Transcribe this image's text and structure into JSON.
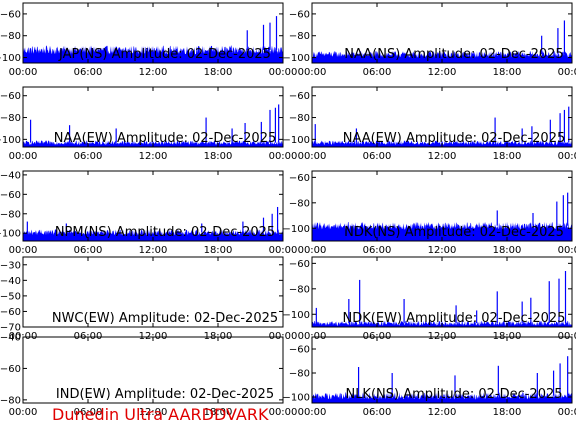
{
  "footer": "Dunedin Ultra AARDDVARK",
  "colors": {
    "trace": "#0000ff",
    "frame": "#000000",
    "footer": "#e00000"
  },
  "chart_data": [
    {
      "type": "area",
      "title": "JAP(NS) Amplitude: 02-Dec-2025",
      "x_ticks": [
        "00:00",
        "06:00",
        "12:00",
        "18:00",
        "00:00"
      ],
      "xlim": [
        0,
        24
      ],
      "ylim": [
        -105,
        -50
      ],
      "y_ticks": [
        -60,
        -80,
        -100
      ],
      "series": [
        {
          "baseline": -93,
          "noise": 4,
          "spikes": [
            [
              20.7,
              -75
            ],
            [
              22.2,
              -70
            ],
            [
              22.8,
              -68
            ],
            [
              23.4,
              -62
            ]
          ]
        }
      ]
    },
    {
      "type": "area",
      "title": "NAA(NS) Amplitude: 02-Dec-2025",
      "x_ticks": [
        "00:00",
        "06:00",
        "12:00",
        "18:00",
        "00:00"
      ],
      "xlim": [
        0,
        24
      ],
      "ylim": [
        -105,
        -50
      ],
      "y_ticks": [
        -60,
        -80,
        -100
      ],
      "series": [
        {
          "baseline": -97,
          "noise": 3,
          "spikes": [
            [
              21.2,
              -80
            ],
            [
              22.7,
              -73
            ],
            [
              23.3,
              -66
            ]
          ]
        }
      ]
    },
    {
      "type": "area",
      "title": "NAA(EW) Amplitude: 02-Dec-2025",
      "x_ticks": [
        "00:00",
        "06:00",
        "12:00",
        "18:00",
        "00:00"
      ],
      "xlim": [
        0,
        24
      ],
      "ylim": [
        -107,
        -52
      ],
      "y_ticks": [
        -60,
        -80,
        -100
      ],
      "series": [
        {
          "baseline": -103,
          "noise": 2,
          "spikes": [
            [
              0.7,
              -82
            ],
            [
              4.3,
              -87
            ],
            [
              8.6,
              -90
            ],
            [
              16.9,
              -80
            ],
            [
              19.3,
              -90
            ],
            [
              20.5,
              -85
            ],
            [
              22.0,
              -84
            ],
            [
              22.8,
              -73
            ],
            [
              23.3,
              -71
            ],
            [
              23.6,
              -68
            ]
          ]
        }
      ]
    },
    {
      "type": "area",
      "title": "NAA(EW) Amplitude: 02-Dec-2025",
      "x_ticks": [
        "00:00",
        "06:00",
        "12:00",
        "18:00",
        "00:00"
      ],
      "xlim": [
        0,
        24
      ],
      "ylim": [
        -107,
        -52
      ],
      "y_ticks": [
        -60,
        -80,
        -100
      ],
      "series": [
        {
          "baseline": -103,
          "noise": 2,
          "spikes": [
            [
              0.3,
              -86
            ],
            [
              4.1,
              -90
            ],
            [
              16.9,
              -80
            ],
            [
              19.4,
              -90
            ],
            [
              20.3,
              -88
            ],
            [
              22.0,
              -82
            ],
            [
              22.9,
              -76
            ],
            [
              23.3,
              -73
            ],
            [
              23.7,
              -70
            ]
          ]
        }
      ]
    },
    {
      "type": "area",
      "title": "NPM(NS) Amplitude: 02-Dec-2025",
      "x_ticks": [
        "00:00",
        "06:00",
        "12:00",
        "18:00",
        "00:00"
      ],
      "xlim": [
        0,
        24
      ],
      "ylim": [
        -108,
        -36
      ],
      "y_ticks": [
        -40,
        -60,
        -80,
        -100
      ],
      "series": [
        {
          "baseline": -99,
          "noise": 3,
          "spikes": [
            [
              0.4,
              -88
            ],
            [
              4.0,
              -90
            ],
            [
              16.5,
              -90
            ],
            [
              20.3,
              -88
            ],
            [
              22.2,
              -84
            ],
            [
              23.0,
              -80
            ],
            [
              23.5,
              -73
            ]
          ]
        }
      ]
    },
    {
      "type": "area",
      "title": "NDK(NS) Amplitude: 02-Dec-2025",
      "x_ticks": [
        "00:00",
        "06:00",
        "12:00",
        "18:00",
        "00:00"
      ],
      "xlim": [
        0,
        24
      ],
      "ylim": [
        -110,
        -55
      ],
      "y_ticks": [
        -60,
        -80,
        -100
      ],
      "series": [
        {
          "baseline": -98,
          "noise": 3,
          "spikes": [
            [
              17.1,
              -86
            ],
            [
              20.4,
              -88
            ],
            [
              22.6,
              -79
            ],
            [
              23.2,
              -74
            ],
            [
              23.6,
              -72
            ]
          ]
        }
      ]
    },
    {
      "type": "area",
      "title": "NWC(EW) Amplitude: 02-Dec-2025",
      "x_ticks": [
        "00:00",
        "06:00",
        "12:00",
        "18:00",
        "00:00"
      ],
      "xlim": [
        0,
        24
      ],
      "ylim": [
        -70,
        -25
      ],
      "y_ticks": [
        -30,
        -40,
        -50,
        -60,
        -70
      ],
      "series": []
    },
    {
      "type": "area",
      "title": "NDK(EW) Amplitude: 02-Dec-2025",
      "x_ticks": [
        "00:00",
        "06:00",
        "12:00",
        "18:00",
        "00:00"
      ],
      "xlim": [
        0,
        24
      ],
      "ylim": [
        -110,
        -55
      ],
      "y_ticks": [
        -60,
        -80,
        -100
      ],
      "series": [
        {
          "baseline": -107,
          "noise": 2,
          "spikes": [
            [
              0.4,
              -95
            ],
            [
              3.4,
              -88
            ],
            [
              4.4,
              -73
            ],
            [
              8.5,
              -88
            ],
            [
              13.3,
              -93
            ],
            [
              15.2,
              -97
            ],
            [
              17.1,
              -82
            ],
            [
              19.4,
              -90
            ],
            [
              20.2,
              -87
            ],
            [
              21.9,
              -74
            ],
            [
              22.8,
              -72
            ],
            [
              23.4,
              -66
            ]
          ]
        }
      ]
    },
    {
      "type": "area",
      "title": "IND(EW) Amplitude: 02-Dec-2025",
      "x_ticks": [
        "00:00",
        "06:00",
        "12:00",
        "18:00",
        "00:00"
      ],
      "xlim": [
        0,
        24
      ],
      "ylim": [
        -82,
        -40
      ],
      "y_ticks": [
        -40,
        -60,
        -80
      ],
      "series": []
    },
    {
      "type": "area",
      "title": "NLK(NS) Amplitude: 02-Dec-2025",
      "x_ticks": [
        "00:00",
        "06:00",
        "12:00",
        "18:00",
        "00:00"
      ],
      "xlim": [
        0,
        24
      ],
      "ylim": [
        -105,
        -50
      ],
      "y_ticks": [
        -60,
        -80,
        -100
      ],
      "series": [
        {
          "baseline": -99,
          "noise": 3,
          "spikes": [
            [
              4.3,
              -75
            ],
            [
              7.4,
              -80
            ],
            [
              13.2,
              -82
            ],
            [
              17.2,
              -74
            ],
            [
              20.8,
              -80
            ],
            [
              22.3,
              -78
            ],
            [
              22.9,
              -72
            ],
            [
              23.6,
              -66
            ]
          ]
        }
      ]
    }
  ]
}
